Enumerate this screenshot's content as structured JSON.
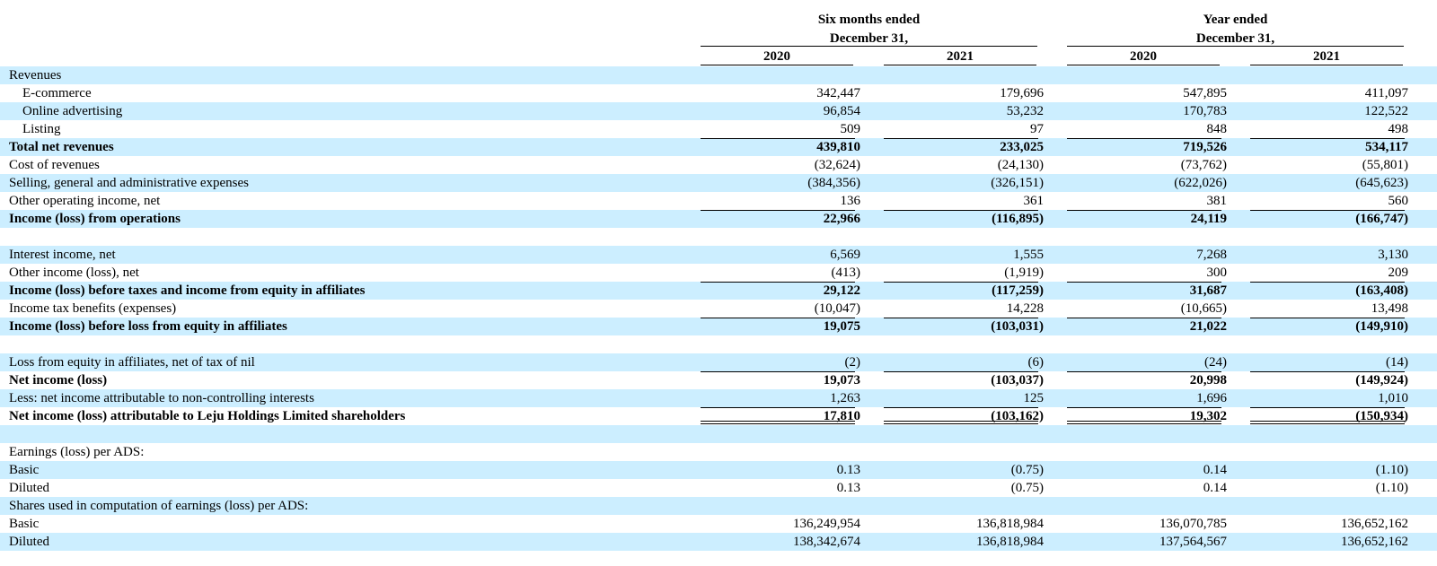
{
  "header": {
    "groups": [
      {
        "line1": "Six months ended",
        "line2": "December 31,"
      },
      {
        "line1": "Year ended",
        "line2": "December 31,"
      }
    ],
    "years": [
      "2020",
      "2021",
      "2020",
      "2021"
    ]
  },
  "rows": [
    {
      "label": "Revenues",
      "values": [
        "",
        "",
        "",
        ""
      ]
    },
    {
      "label": "E-commerce",
      "values": [
        "342,447",
        "179,696",
        "547,895",
        "411,097"
      ]
    },
    {
      "label": "Online advertising",
      "values": [
        "96,854",
        "53,232",
        "170,783",
        "122,522"
      ]
    },
    {
      "label": "Listing",
      "values": [
        "509",
        "97",
        "848",
        "498"
      ]
    },
    {
      "label": "Total net revenues",
      "values": [
        "439,810",
        "233,025",
        "719,526",
        "534,117"
      ]
    },
    {
      "label": "Cost of revenues",
      "values": [
        "(32,624)",
        "(24,130)",
        "(73,762)",
        "(55,801)"
      ]
    },
    {
      "label": "Selling, general and administrative expenses",
      "values": [
        "(384,356)",
        "(326,151)",
        "(622,026)",
        "(645,623)"
      ]
    },
    {
      "label": "Other operating income, net",
      "values": [
        "136",
        "361",
        "381",
        "560"
      ]
    },
    {
      "label": "Income (loss) from operations",
      "values": [
        "22,966",
        "(116,895)",
        "24,119",
        "(166,747)"
      ]
    },
    {
      "label": "",
      "values": [
        "",
        "",
        "",
        ""
      ]
    },
    {
      "label": "Interest income, net",
      "values": [
        "6,569",
        "1,555",
        "7,268",
        "3,130"
      ]
    },
    {
      "label": "Other income (loss), net",
      "values": [
        "(413)",
        "(1,919)",
        "300",
        "209"
      ]
    },
    {
      "label": "Income (loss) before taxes and income from equity in affiliates",
      "values": [
        "29,122",
        "(117,259)",
        "31,687",
        "(163,408)"
      ]
    },
    {
      "label": "Income tax benefits (expenses)",
      "values": [
        "(10,047)",
        "14,228",
        "(10,665)",
        "13,498"
      ]
    },
    {
      "label": "Income (loss) before loss from equity in affiliates",
      "values": [
        "19,075",
        "(103,031)",
        "21,022",
        "(149,910)"
      ]
    },
    {
      "label": "",
      "values": [
        "",
        "",
        "",
        ""
      ]
    },
    {
      "label": "Loss from equity in affiliates, net of tax of nil",
      "values": [
        "(2)",
        "(6)",
        "(24)",
        "(14)"
      ]
    },
    {
      "label": "Net income (loss)",
      "values": [
        "19,073",
        "(103,037)",
        "20,998",
        "(149,924)"
      ]
    },
    {
      "label": "Less: net income attributable to non-controlling interests",
      "values": [
        "1,263",
        "125",
        "1,696",
        "1,010"
      ]
    },
    {
      "label": "Net income (loss) attributable to Leju Holdings Limited shareholders",
      "values": [
        "17,810",
        "(103,162)",
        "19,302",
        "(150,934)"
      ]
    },
    {
      "label": "",
      "values": [
        "",
        "",
        "",
        ""
      ]
    },
    {
      "label": "Earnings (loss) per ADS:",
      "values": [
        "",
        "",
        "",
        ""
      ]
    },
    {
      "label": "Basic",
      "values": [
        "0.13",
        "(0.75)",
        "0.14",
        "(1.10)"
      ]
    },
    {
      "label": "Diluted",
      "values": [
        "0.13",
        "(0.75)",
        "0.14",
        "(1.10)"
      ]
    },
    {
      "label": "Shares used in computation of earnings (loss) per ADS:",
      "values": [
        "",
        "",
        "",
        ""
      ]
    },
    {
      "label": "Basic",
      "values": [
        "136,249,954",
        "136,818,984",
        "136,070,785",
        "136,652,162"
      ]
    },
    {
      "label": "Diluted",
      "values": [
        "138,342,674",
        "136,818,984",
        "137,564,567",
        "136,652,162"
      ]
    }
  ]
}
